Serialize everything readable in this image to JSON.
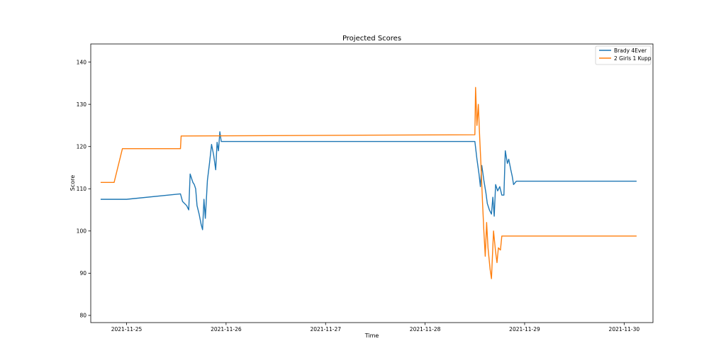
{
  "chart_data": {
    "type": "line",
    "title": "Projected Scores",
    "xlabel": "Time",
    "ylabel": "Score",
    "x_ticks": [
      "2021-11-25",
      "2021-11-26",
      "2021-11-27",
      "2021-11-28",
      "2021-11-29",
      "2021-11-30"
    ],
    "y_ticks": [
      80,
      90,
      100,
      110,
      120,
      130,
      140
    ],
    "xlim": [
      "2021-11-24 15:22",
      "2021-11-30 06:57"
    ],
    "ylim": [
      78.3,
      144.3
    ],
    "legend_position": "top-right",
    "grid": false,
    "series": [
      {
        "name": "Brady 4Ever",
        "color": "#1f77b4",
        "points": [
          [
            "2021-11-24 17:45",
            107.5
          ],
          [
            "2021-11-25 00:00",
            107.5
          ],
          [
            "2021-11-25 13:00",
            108.8
          ],
          [
            "2021-11-25 13:30",
            107.0
          ],
          [
            "2021-11-25 14:30",
            106.0
          ],
          [
            "2021-11-25 15:00",
            105.0
          ],
          [
            "2021-11-25 15:20",
            113.5
          ],
          [
            "2021-11-25 16:00",
            111.5
          ],
          [
            "2021-11-25 16:20",
            111.0
          ],
          [
            "2021-11-25 16:40",
            110.0
          ],
          [
            "2021-11-25 17:00",
            106.0
          ],
          [
            "2021-11-25 17:30",
            104.0
          ],
          [
            "2021-11-25 18:00",
            101.5
          ],
          [
            "2021-11-25 18:20",
            100.3
          ],
          [
            "2021-11-25 18:40",
            107.5
          ],
          [
            "2021-11-25 19:00",
            103.0
          ],
          [
            "2021-11-25 19:30",
            112.0
          ],
          [
            "2021-11-25 20:00",
            116.0
          ],
          [
            "2021-11-25 20:30",
            120.5
          ],
          [
            "2021-11-25 21:00",
            118.0
          ],
          [
            "2021-11-25 21:30",
            114.5
          ],
          [
            "2021-11-25 21:50",
            121.0
          ],
          [
            "2021-11-25 22:10",
            119.0
          ],
          [
            "2021-11-25 22:30",
            123.5
          ],
          [
            "2021-11-25 22:50",
            121.2
          ],
          [
            "2021-11-28 12:00",
            121.2
          ],
          [
            "2021-11-28 12:30",
            117.0
          ],
          [
            "2021-11-28 13:00",
            113.5
          ],
          [
            "2021-11-28 13:20",
            110.5
          ],
          [
            "2021-11-28 13:40",
            115.5
          ],
          [
            "2021-11-28 14:10",
            112.0
          ],
          [
            "2021-11-28 14:40",
            109.0
          ],
          [
            "2021-11-28 15:00",
            106.5
          ],
          [
            "2021-11-28 15:30",
            105.0
          ],
          [
            "2021-11-28 16:00",
            104.0
          ],
          [
            "2021-11-28 16:20",
            108.0
          ],
          [
            "2021-11-28 16:40",
            103.5
          ],
          [
            "2021-11-28 17:00",
            111.0
          ],
          [
            "2021-11-28 17:30",
            109.5
          ],
          [
            "2021-11-28 18:00",
            110.5
          ],
          [
            "2021-11-28 18:30",
            108.5
          ],
          [
            "2021-11-28 19:00",
            108.5
          ],
          [
            "2021-11-28 19:20",
            119.0
          ],
          [
            "2021-11-28 19:50",
            116.0
          ],
          [
            "2021-11-28 20:10",
            117.0
          ],
          [
            "2021-11-28 20:40",
            114.5
          ],
          [
            "2021-11-28 21:00",
            113.0
          ],
          [
            "2021-11-28 21:20",
            111.0
          ],
          [
            "2021-11-28 22:00",
            111.8
          ],
          [
            "2021-11-30 03:00",
            111.8
          ]
        ]
      },
      {
        "name": "2 Girls 1 Kupp",
        "color": "#ff7f0e",
        "points": [
          [
            "2021-11-24 17:45",
            111.5
          ],
          [
            "2021-11-24 21:00",
            111.5
          ],
          [
            "2021-11-24 23:00",
            119.5
          ],
          [
            "2021-11-25 13:00",
            119.5
          ],
          [
            "2021-11-25 13:10",
            122.5
          ],
          [
            "2021-11-28 12:00",
            122.8
          ],
          [
            "2021-11-28 12:10",
            134.0
          ],
          [
            "2021-11-28 12:30",
            125.0
          ],
          [
            "2021-11-28 12:50",
            130.0
          ],
          [
            "2021-11-28 13:10",
            122.0
          ],
          [
            "2021-11-28 13:30",
            115.0
          ],
          [
            "2021-11-28 13:50",
            107.0
          ],
          [
            "2021-11-28 14:10",
            100.0
          ],
          [
            "2021-11-28 14:30",
            94.0
          ],
          [
            "2021-11-28 14:50",
            102.0
          ],
          [
            "2021-11-28 15:10",
            96.0
          ],
          [
            "2021-11-28 15:40",
            91.0
          ],
          [
            "2021-11-28 16:00",
            88.7
          ],
          [
            "2021-11-28 16:30",
            100.0
          ],
          [
            "2021-11-28 17:00",
            95.0
          ],
          [
            "2021-11-28 17:20",
            92.5
          ],
          [
            "2021-11-28 17:40",
            96.0
          ],
          [
            "2021-11-28 18:10",
            95.5
          ],
          [
            "2021-11-28 18:30",
            98.8
          ],
          [
            "2021-11-30 03:00",
            98.8
          ]
        ]
      }
    ]
  }
}
